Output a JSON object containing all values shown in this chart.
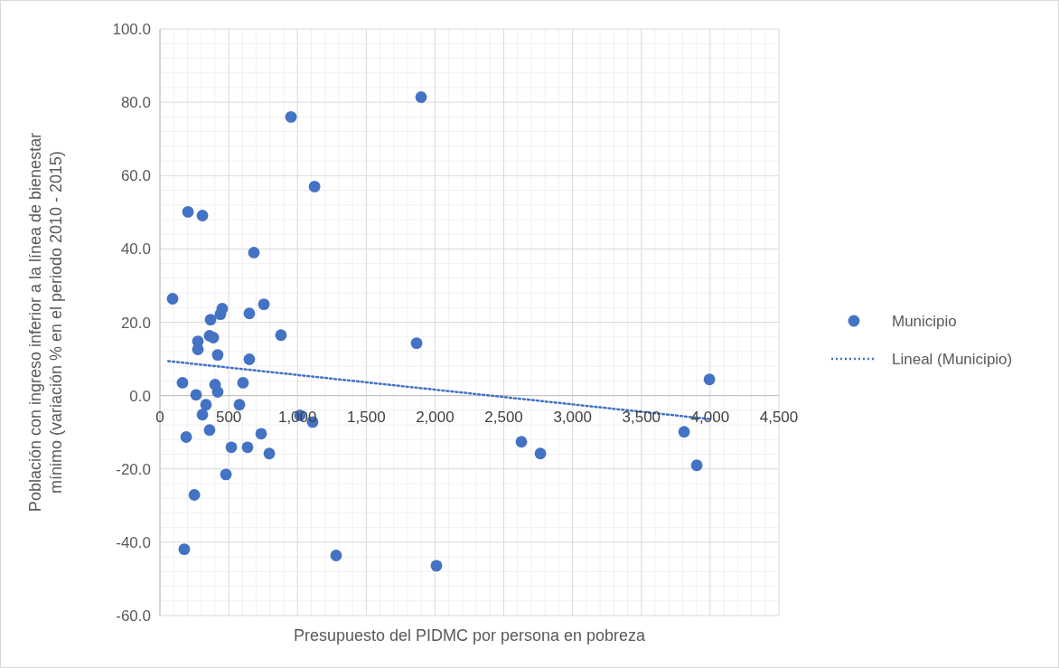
{
  "chart_data": {
    "type": "scatter",
    "xlabel": "Presupuesto del PIDMC por persona en pobreza",
    "ylabel": "Población con ingreso inferior a la línea de bienestar mínimo (variación % en el periodo 2010 - 2015)",
    "xlim": [
      0,
      4500
    ],
    "ylim": [
      -60,
      100
    ],
    "xticks": [
      0,
      500,
      {
        "value": 1000,
        "label": "1,000"
      },
      {
        "value": 1500,
        "label": "1,500"
      },
      {
        "value": 2000,
        "label": "2,000"
      },
      {
        "value": 2500,
        "label": "2,500"
      },
      {
        "value": 3000,
        "label": "3,000"
      },
      {
        "value": 3500,
        "label": "3,500"
      },
      {
        "value": 4000,
        "label": "4,000"
      },
      {
        "value": 4500,
        "label": "4,500"
      }
    ],
    "yticks": [
      {
        "value": -60,
        "label": "-60.0"
      },
      {
        "value": -40,
        "label": "-40.0"
      },
      {
        "value": -20,
        "label": "-20.0"
      },
      {
        "value": 0,
        "label": "0.0"
      },
      {
        "value": 20,
        "label": "20.0"
      },
      {
        "value": 40,
        "label": "40.0"
      },
      {
        "value": 60,
        "label": "60.0"
      },
      {
        "value": 80,
        "label": "80.0"
      },
      {
        "value": 100,
        "label": "100.0"
      }
    ],
    "grid": true,
    "legend": "right",
    "series": [
      {
        "name": "Municipio",
        "marker": "circle",
        "color": "#4472c4",
        "x": [
          92,
          204,
          309,
          683,
          453,
          440,
          368,
          361,
          388,
          276,
          276,
          420,
          650,
          756,
          650,
          880,
          164,
          401,
          420,
          604,
          263,
          335,
          578,
          309,
          361,
          191,
          736,
          519,
          637,
          795,
          480,
          250,
          177,
          953,
          1124,
          1899,
          1866,
          1018,
          1110,
          1281,
          2010,
          2628,
          2766,
          3811,
          3903,
          3995
        ],
        "values": [
          26.4,
          50.1,
          49.1,
          39.0,
          23.7,
          22.2,
          20.7,
          16.3,
          15.8,
          14.8,
          12.6,
          11.1,
          9.9,
          24.9,
          22.4,
          16.5,
          3.5,
          3.0,
          1.0,
          3.5,
          0.2,
          -2.5,
          -2.5,
          -5.2,
          -9.4,
          -11.3,
          -10.4,
          -14.1,
          -14.1,
          -15.8,
          -21.5,
          -27.1,
          -41.9,
          76.0,
          57.0,
          81.4,
          14.3,
          -5.4,
          -7.2,
          -43.6,
          -46.4,
          -12.6,
          -15.8,
          -9.9,
          -19.0,
          4.4
        ]
      },
      {
        "name": "Lineal (Municipio)",
        "type": "line",
        "line_style": "dotted",
        "color": "#4472c4",
        "x": [
          60,
          3995
        ],
        "values": [
          9.4,
          -6.4
        ]
      }
    ]
  }
}
